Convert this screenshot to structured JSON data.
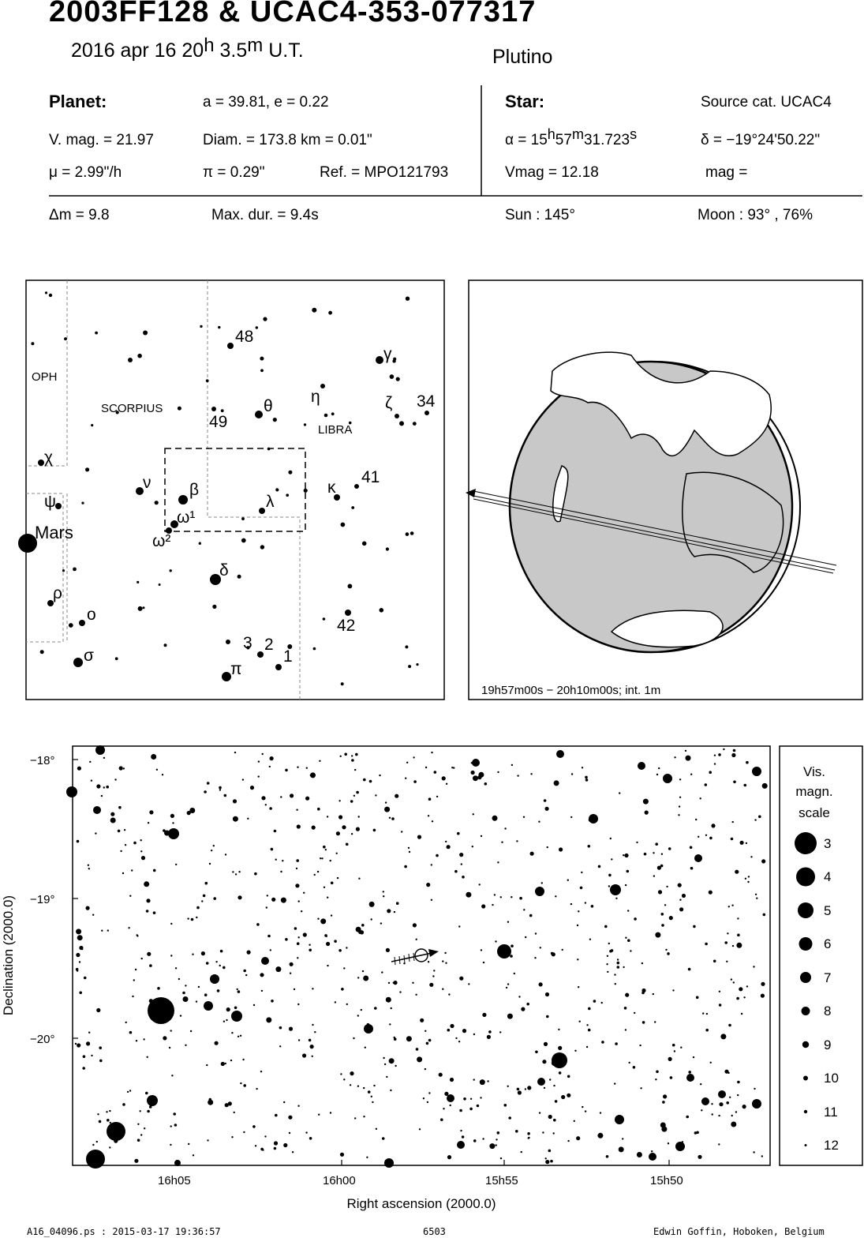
{
  "header": {
    "title": "2003FF128  &  UCAC4-353-077317",
    "date": {
      "prefix": "2016 apr 16  20",
      "h": "h",
      "mid": " 3.5",
      "m": "m",
      "suffix": " U.T."
    },
    "class": "Plutino"
  },
  "planet": {
    "heading": "Planet:",
    "orbit": "a = 39.81, e = 0.22",
    "vmag": "V. mag. = 21.97",
    "diam": "Diam. = 173.8 km = 0.01\"",
    "mu": "μ =  2.99\"/h",
    "pi": "π =  0.29\"",
    "ref": "Ref. = MPO121793"
  },
  "star": {
    "heading": "Star:",
    "source": "Source cat.  UCAC4",
    "ra": {
      "a": "α = 15",
      "h": "h",
      "b": "57",
      "m": "m",
      "c": "31.723",
      "s": "s"
    },
    "dec": "δ = −19°24'50.22\"",
    "vmag": "Vmag = 12.18",
    "mag": "mag ="
  },
  "summary": {
    "dm": "Δm = 9.8",
    "maxdur": "Max. dur. = 9.4s",
    "sun": "Sun : 145°",
    "moon": "Moon :  93° , 76%"
  },
  "constellation_chart": {
    "labels": [
      "OPH",
      "SCORPIUS",
      "LIBRA",
      "Mars"
    ],
    "star_labels": [
      "48",
      "γ",
      "η",
      "ζ",
      "34",
      "θ",
      "49",
      "χ",
      "ν",
      "β",
      "λ",
      "κ",
      "41",
      "ψ",
      "ω¹",
      "ω²",
      "δ",
      "ρ",
      "ο",
      "42",
      "3",
      "2",
      "1",
      "σ",
      "π"
    ]
  },
  "globe": {
    "caption": "19h57m00s − 20h10m00s; int.  1m"
  },
  "star_chart": {
    "y_ticks": [
      "−18°",
      "−19°",
      "−20°"
    ],
    "x_ticks": [
      "16h05",
      "16h00",
      "15h55",
      "15h50"
    ],
    "xlabel": "Right ascension (2000.0)",
    "ylabel": "Declination (2000.0)"
  },
  "legend": {
    "title": [
      "Vis.",
      "magn.",
      "scale"
    ],
    "mags": [
      "3",
      "4",
      "5",
      "6",
      "7",
      "8",
      "9",
      "10",
      "11",
      "12"
    ]
  },
  "footer": {
    "file": "A16_04096.ps : 2015-03-17 19:36:57",
    "num": "6503",
    "author": "Edwin Goffin, Hoboken, Belgium"
  }
}
